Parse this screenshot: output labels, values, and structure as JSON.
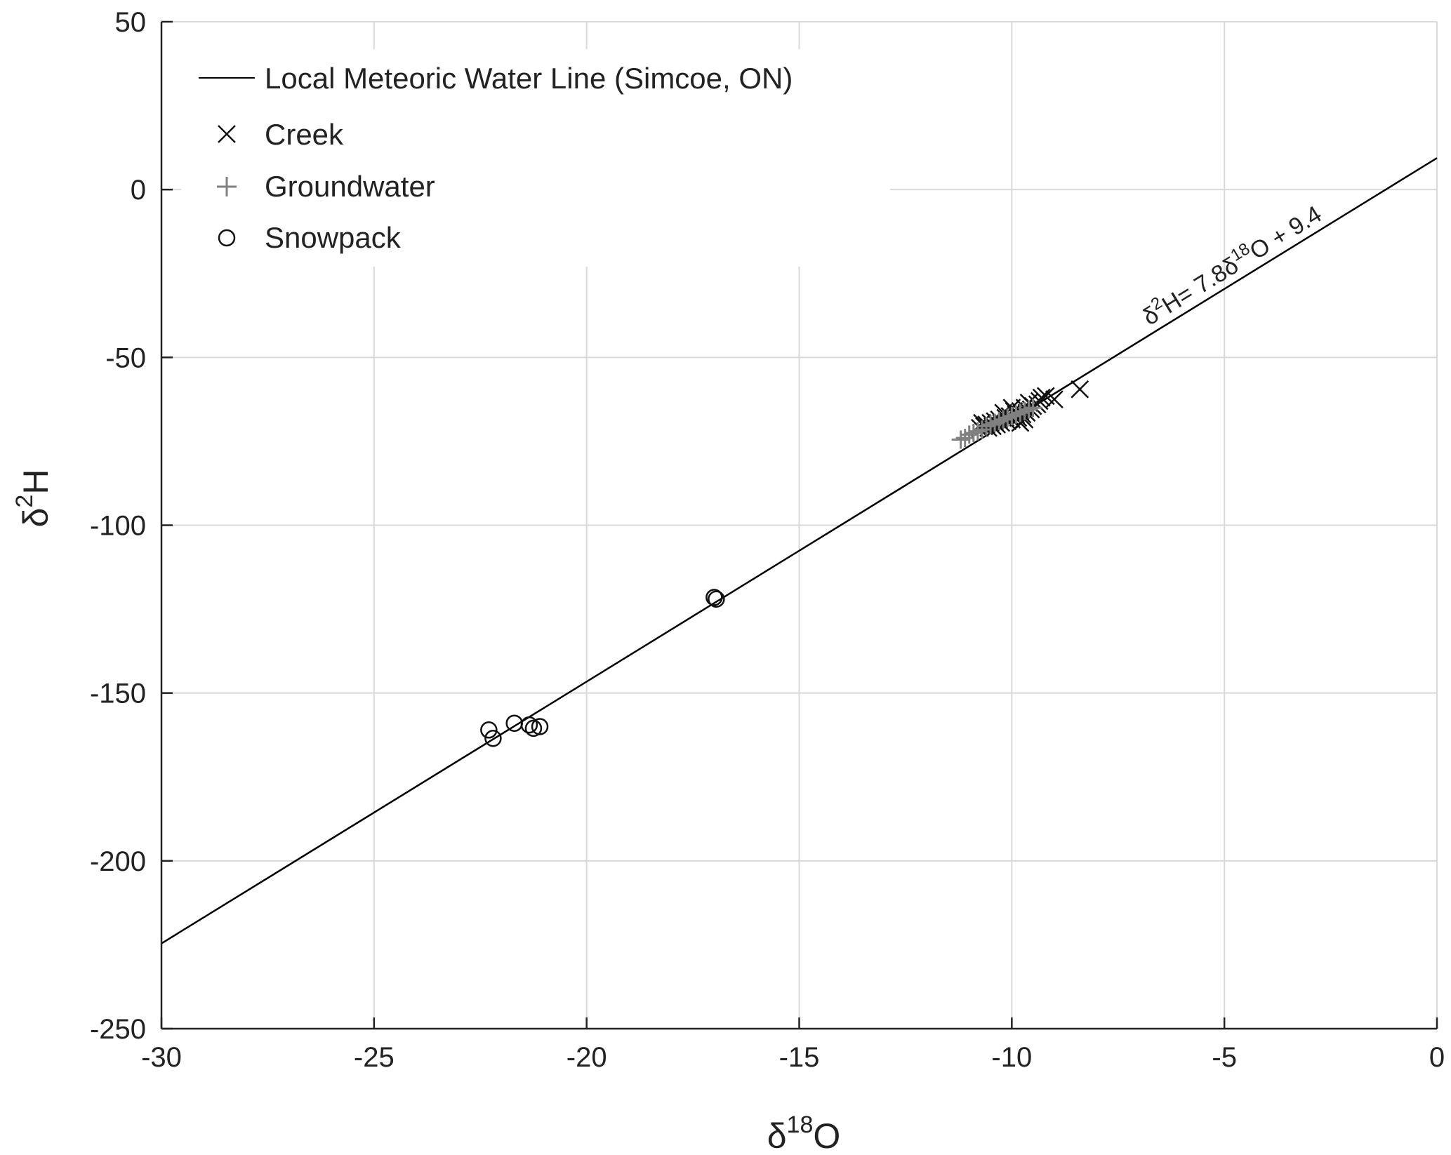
{
  "chart_data": {
    "type": "scatter",
    "title": "",
    "xlabel": "δ18O",
    "ylabel": "δ2H",
    "xlabel_parts": {
      "symbol": "δ",
      "sup": "18",
      "letter": "O"
    },
    "ylabel_parts": {
      "symbol": "δ",
      "sup": "2",
      "letter": "H"
    },
    "xlim": [
      -30,
      0
    ],
    "ylim": [
      -250,
      50
    ],
    "xticks": [
      -30,
      -25,
      -20,
      -15,
      -10,
      -5,
      0
    ],
    "yticks": [
      -250,
      -200,
      -150,
      -100,
      -50,
      0,
      50
    ],
    "xtick_labels": [
      "-30",
      "-25",
      "-20",
      "-15",
      "-10",
      "-5",
      "0"
    ],
    "ytick_labels": [
      "-250",
      "-200",
      "-150",
      "-100",
      "-50",
      "0",
      "50"
    ],
    "grid": true,
    "legend_position": "top-left",
    "line": {
      "name": "Local Meteoric Water Line (Simcoe, ON)",
      "slope": 7.8,
      "intercept": 9.4,
      "color": "#000000",
      "equation": {
        "a": "δ",
        "a_sup": "2",
        "b": "H= 7.8δ",
        "b_sup": "18",
        "c": "O + 9.4"
      }
    },
    "series": [
      {
        "name": "Creek",
        "marker": "x",
        "color": "#111111",
        "points": [
          [
            -8.4,
            -59.5
          ],
          [
            -9.0,
            -62.5
          ],
          [
            -9.2,
            -61.5
          ],
          [
            -9.3,
            -62.0
          ],
          [
            -9.35,
            -63.0
          ],
          [
            -9.4,
            -64.0
          ],
          [
            -9.5,
            -64.5
          ],
          [
            -9.55,
            -65.5
          ],
          [
            -9.6,
            -63.5
          ],
          [
            -9.65,
            -66.5
          ],
          [
            -9.7,
            -65.0
          ],
          [
            -9.75,
            -67.0
          ],
          [
            -9.8,
            -66.0
          ],
          [
            -9.85,
            -68.0
          ],
          [
            -9.9,
            -67.0
          ],
          [
            -9.95,
            -66.0
          ],
          [
            -10.0,
            -68.5
          ],
          [
            -10.05,
            -67.5
          ],
          [
            -10.1,
            -69.0
          ],
          [
            -10.15,
            -68.0
          ],
          [
            -10.2,
            -66.5
          ],
          [
            -10.25,
            -69.5
          ],
          [
            -10.3,
            -68.5
          ],
          [
            -10.35,
            -70.0
          ],
          [
            -10.4,
            -69.0
          ],
          [
            -10.45,
            -70.5
          ],
          [
            -10.5,
            -69.5
          ],
          [
            -10.55,
            -71.0
          ],
          [
            -10.6,
            -70.0
          ],
          [
            -10.65,
            -70.5
          ],
          [
            -10.7,
            -69.5
          ],
          [
            -10.75,
            -71.0
          ],
          [
            -9.7,
            -68.5
          ],
          [
            -9.8,
            -69.5
          ],
          [
            -10.0,
            -65.0
          ]
        ]
      },
      {
        "name": "Groundwater",
        "marker": "+",
        "color": "#808080",
        "points": [
          [
            -11.2,
            -74.5
          ],
          [
            -11.1,
            -74.0
          ],
          [
            -11.0,
            -73.0
          ],
          [
            -10.9,
            -72.5
          ],
          [
            -10.8,
            -72.0
          ],
          [
            -10.7,
            -71.5
          ],
          [
            -10.6,
            -70.5
          ],
          [
            -10.5,
            -70.0
          ],
          [
            -10.4,
            -69.5
          ],
          [
            -10.3,
            -69.0
          ],
          [
            -10.2,
            -68.5
          ],
          [
            -10.1,
            -68.0
          ],
          [
            -10.0,
            -67.5
          ],
          [
            -9.9,
            -67.0
          ],
          [
            -9.8,
            -66.5
          ],
          [
            -9.7,
            -66.0
          ],
          [
            -9.6,
            -65.5
          ],
          [
            -9.5,
            -65.0
          ]
        ]
      },
      {
        "name": "Snowpack",
        "marker": "o",
        "color": "#111111",
        "points": [
          [
            -22.3,
            -161.0
          ],
          [
            -22.2,
            -163.5
          ],
          [
            -21.7,
            -159.0
          ],
          [
            -21.35,
            -159.5
          ],
          [
            -21.25,
            -160.5
          ],
          [
            -21.1,
            -160.0
          ],
          [
            -17.0,
            -121.5
          ],
          [
            -16.95,
            -122.0
          ]
        ]
      }
    ]
  }
}
